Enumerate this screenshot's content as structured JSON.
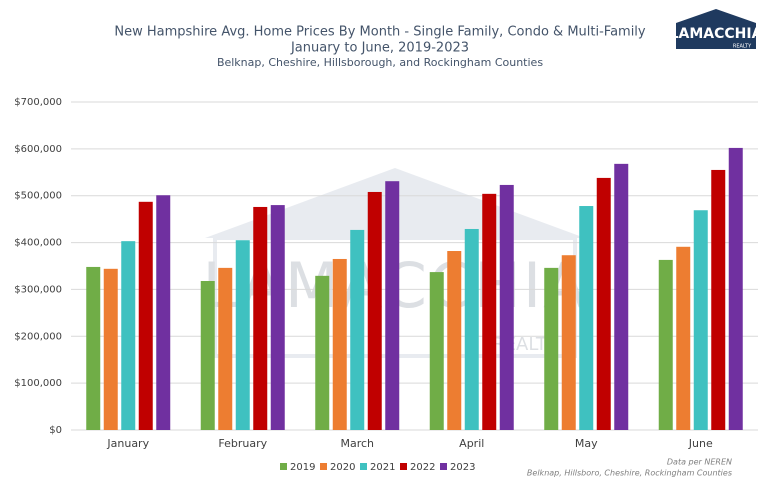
{
  "chart_data": {
    "type": "bar",
    "title": "New Hampshire Avg. Home Prices By Month - Single Family, Condo & Multi-Family",
    "subtitle": "January to June, 2019-2023",
    "subtitle2": "Belknap, Cheshire, Hillsborough, and Rockingham Counties",
    "categories": [
      "January",
      "February",
      "March",
      "April",
      "May",
      "June"
    ],
    "series": [
      {
        "name": "2019",
        "color": "#70ad47",
        "values": [
          348000,
          318000,
          329000,
          337000,
          346000,
          363000
        ]
      },
      {
        "name": "2020",
        "color": "#ed7d31",
        "values": [
          344000,
          346000,
          365000,
          382000,
          373000,
          391000
        ]
      },
      {
        "name": "2021",
        "color": "#3fc1c0",
        "values": [
          403000,
          405000,
          427000,
          429000,
          478000,
          469000
        ]
      },
      {
        "name": "2022",
        "color": "#c00000",
        "values": [
          487000,
          476000,
          508000,
          504000,
          538000,
          555000
        ]
      },
      {
        "name": "2023",
        "color": "#7030a0",
        "values": [
          501000,
          480000,
          531000,
          523000,
          568000,
          602000
        ]
      }
    ],
    "ylim": [
      0,
      700000
    ],
    "yticks": [
      {
        "value": 0,
        "label": "$0"
      },
      {
        "value": 100000,
        "label": "$100,000"
      },
      {
        "value": 200000,
        "label": "$200,000"
      },
      {
        "value": 300000,
        "label": "$300,000"
      },
      {
        "value": 400000,
        "label": "$400,000"
      },
      {
        "value": 500000,
        "label": "$500,000"
      },
      {
        "value": 600000,
        "label": "$600,000"
      },
      {
        "value": 700000,
        "label": "$700,000"
      }
    ],
    "grid": true,
    "legend": "bottom",
    "notes": [
      "Data per NEREN",
      "Belknap, Hillsboro, Cheshire, Rockingham Counties"
    ]
  },
  "logo": {
    "name": "LAMACCHIA",
    "tagline": "REALTY"
  }
}
